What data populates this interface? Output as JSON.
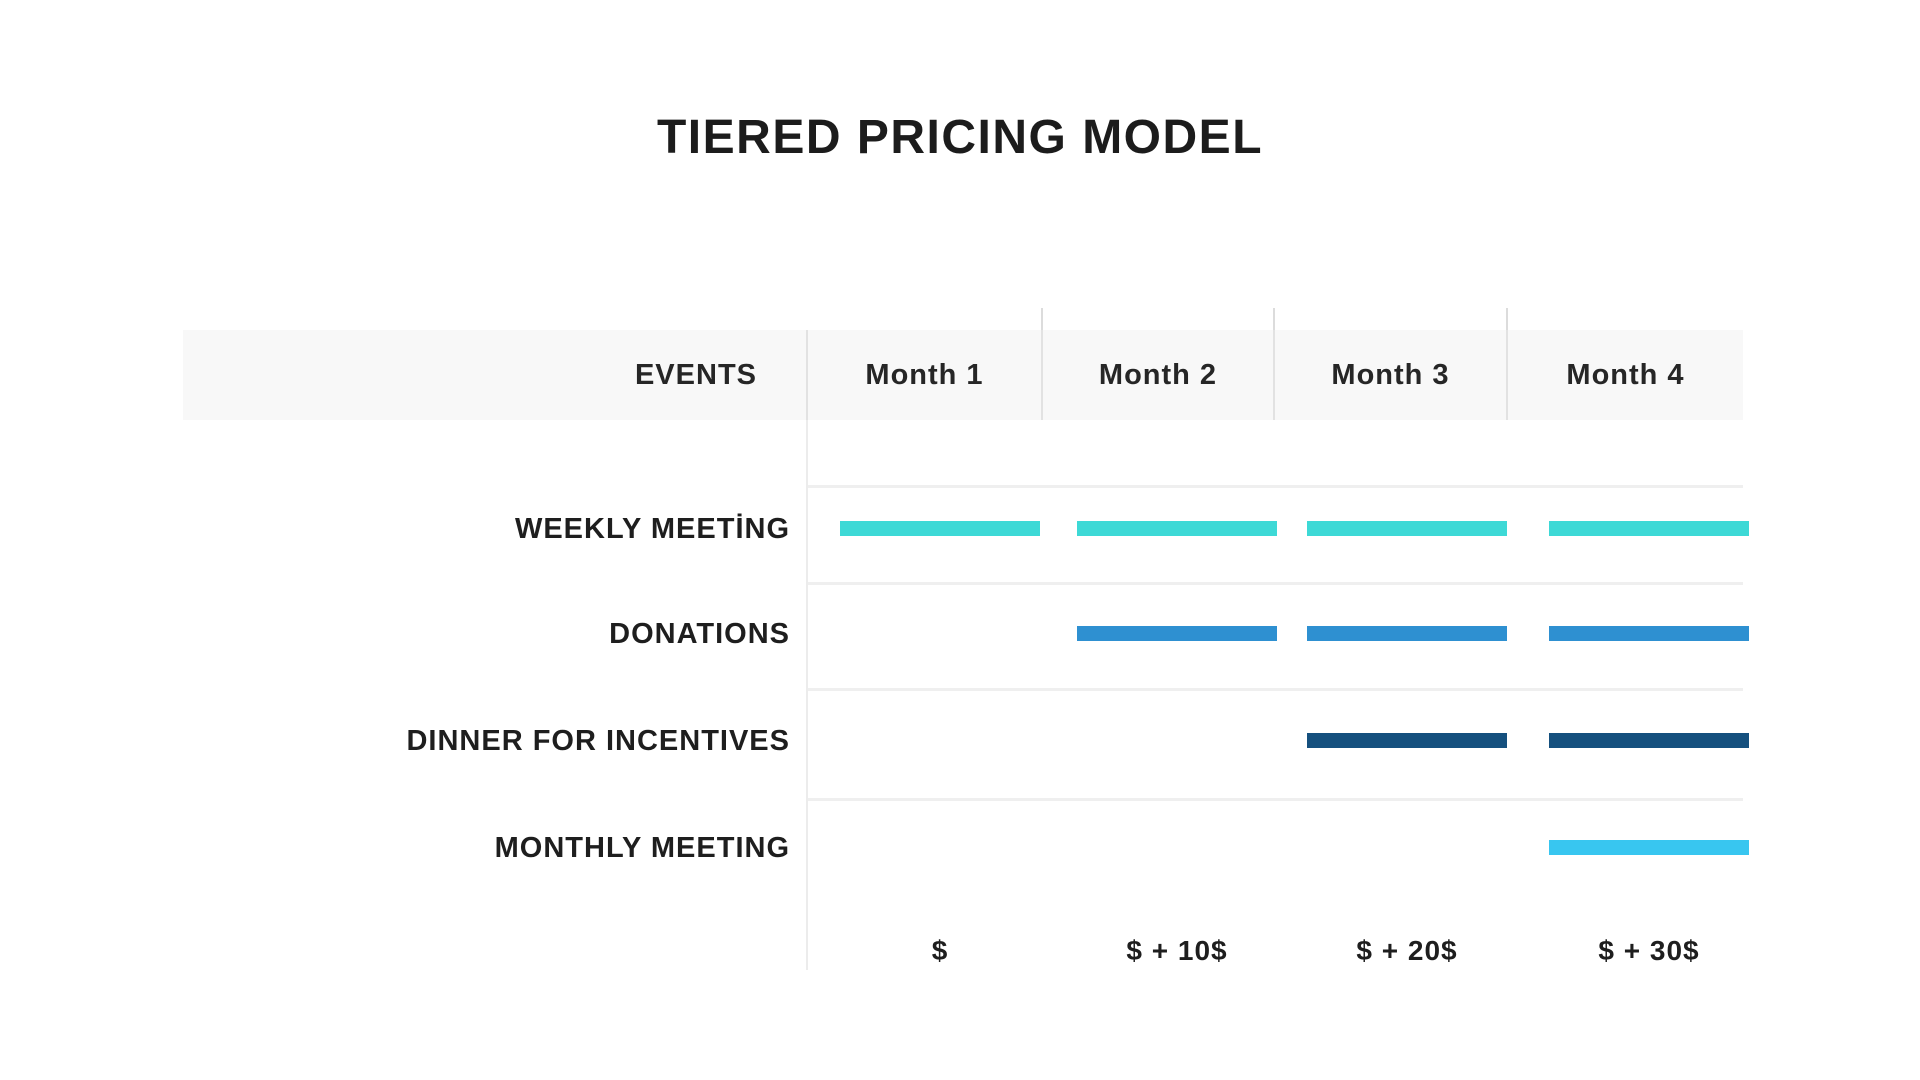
{
  "title": "TIERED PRICING MODEL",
  "colors": {
    "header_background": "#f8f8f8",
    "grid_line": "#efefef",
    "divider_line": "#dcdcdc",
    "text_dark": "#1e1e1e",
    "weekly_meeting_bar": "#3dd9d6",
    "donations_bar": "#2e90d1",
    "dinner_for_incentives_bar": "#15507e",
    "monthly_meeting_bar": "#38c6f0"
  },
  "chart_data": {
    "type": "gantt",
    "title": "TIERED PRICING MODEL",
    "columns_header": "EVENTS",
    "categories": [
      "Month 1",
      "Month 2",
      "Month 3",
      "Month 4"
    ],
    "rows": [
      {
        "label": "WEEKLY MEETİNG",
        "color": "#3dd9d6",
        "active_months": [
          1,
          2,
          3,
          4
        ]
      },
      {
        "label": "DONATIONS",
        "color": "#2e90d1",
        "active_months": [
          2,
          3,
          4
        ]
      },
      {
        "label": "DINNER FOR INCENTIVES",
        "color": "#15507e",
        "active_months": [
          3,
          4
        ]
      },
      {
        "label": "MONTHLY MEETING",
        "color": "#38c6f0",
        "active_months": [
          4
        ]
      }
    ],
    "month_prices": [
      "$",
      "$ + 10$",
      "$ + 20$",
      "$ + 30$"
    ],
    "legend": "none",
    "grid": "light horizontal row separators; single vertical divider after EVENTS column"
  }
}
